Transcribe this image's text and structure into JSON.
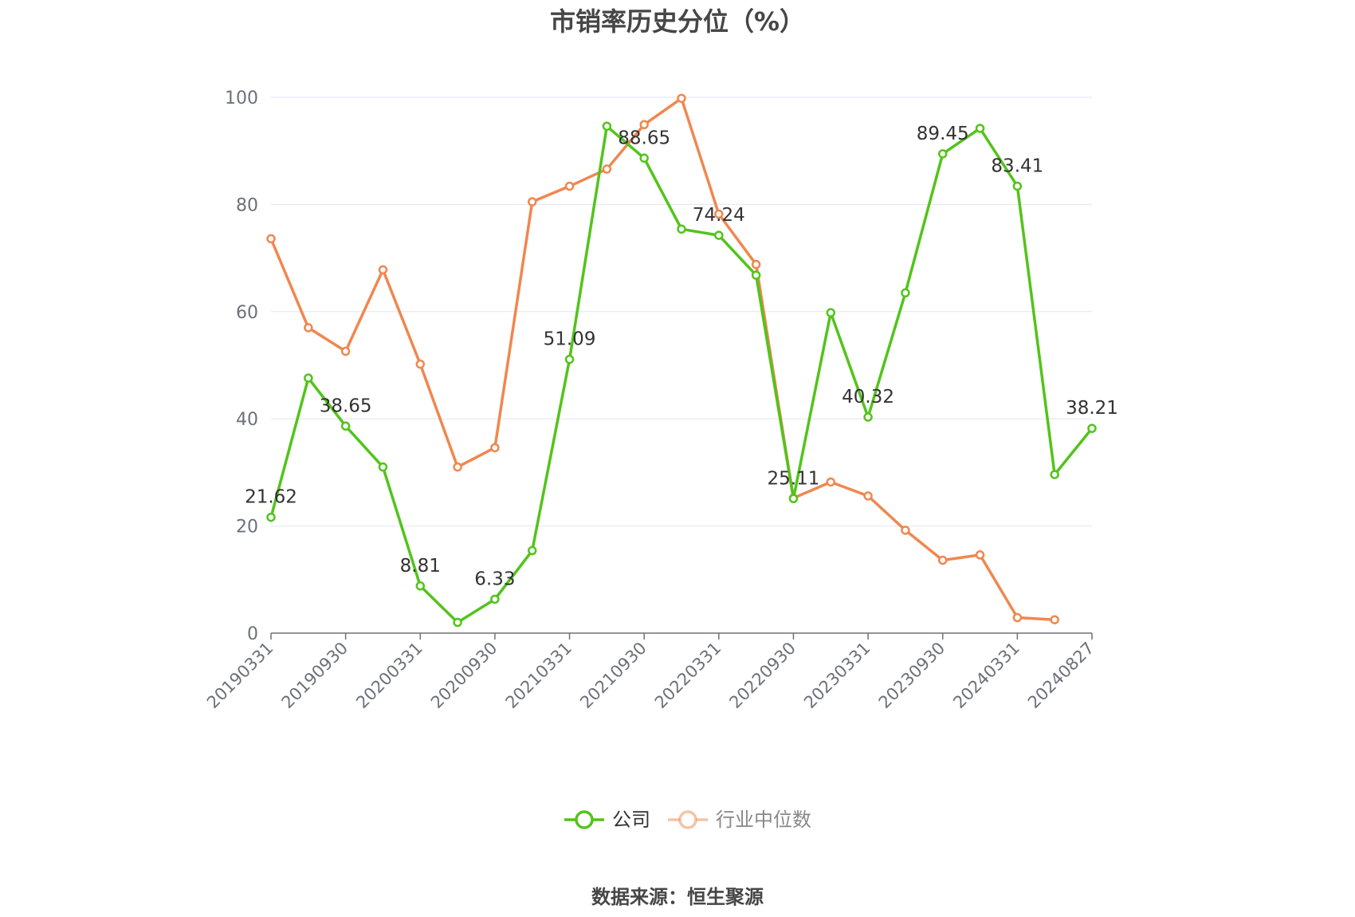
{
  "chart_data": {
    "type": "line",
    "title": "市销率历史分位（%）",
    "x": [
      "20190331",
      "20190630",
      "20190930",
      "20191231",
      "20200331",
      "20200630",
      "20200930",
      "20201231",
      "20210331",
      "20210630",
      "20210930",
      "20211231",
      "20220331",
      "20220630",
      "20220930",
      "20221231",
      "20230331",
      "20230630",
      "20230930",
      "20231231",
      "20240331",
      "20240630",
      "20240827"
    ],
    "tick_labels": [
      "20190331",
      "20190930",
      "20200331",
      "20200930",
      "20210331",
      "20210930",
      "20220331",
      "20220930",
      "20230331",
      "20230930",
      "20240331",
      "20240827"
    ],
    "ylim": [
      0,
      100
    ],
    "yticks": [
      0,
      20,
      40,
      60,
      80,
      100
    ],
    "grid": true,
    "legend_position": "bottom-center",
    "series": [
      {
        "name": "公司",
        "color": "#52c41a",
        "values": [
          21.62,
          47.6,
          38.65,
          31.0,
          8.81,
          2.0,
          6.33,
          15.4,
          51.09,
          94.6,
          88.65,
          75.4,
          74.24,
          66.8,
          25.11,
          59.8,
          40.32,
          63.5,
          89.45,
          94.2,
          83.41,
          29.6,
          38.21
        ],
        "data_labels": {
          "0": "21.62",
          "2": "38.65",
          "4": "8.81",
          "6": "6.33",
          "8": "51.09",
          "10": "88.65",
          "12": "74.24",
          "14": "25.11",
          "16": "40.32",
          "18": "89.45",
          "20": "83.41",
          "22": "38.21"
        }
      },
      {
        "name": "行业中位数",
        "color": "#f0874f",
        "values": [
          73.6,
          57.0,
          52.6,
          67.8,
          50.2,
          31.0,
          34.6,
          80.5,
          83.4,
          86.6,
          94.9,
          99.8,
          78.2,
          68.8,
          25.2,
          28.2,
          25.6,
          19.2,
          13.6,
          14.6,
          2.9,
          2.5,
          null
        ]
      }
    ],
    "source": "数据来源：恒生聚源"
  }
}
